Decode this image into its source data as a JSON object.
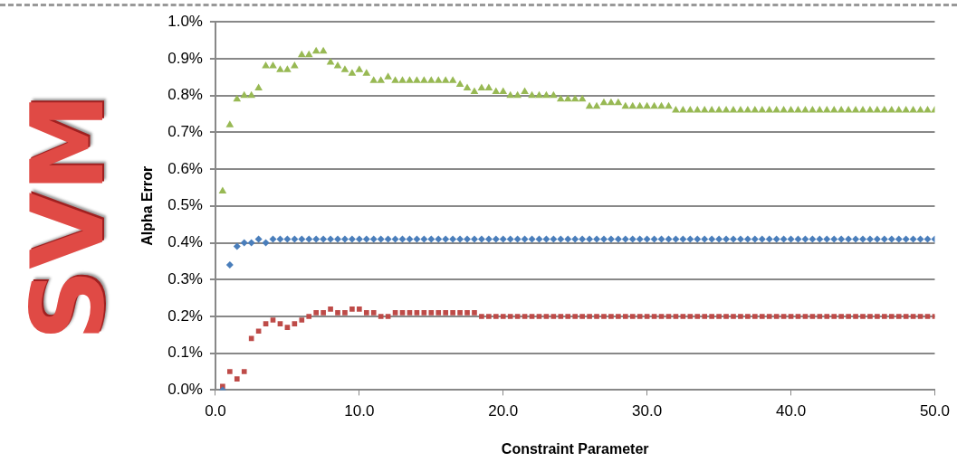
{
  "chart_data": {
    "type": "scatter",
    "xlabel": "Constraint Parameter",
    "ylabel": "Alpha Error",
    "annotations": [
      "SVM"
    ],
    "x": [
      0.5,
      1,
      1.5,
      2,
      2.5,
      3,
      3.5,
      4,
      4.5,
      5,
      5.5,
      6,
      6.5,
      7,
      7.5,
      8,
      8.5,
      9,
      9.5,
      10,
      10.5,
      11,
      11.5,
      12,
      12.5,
      13,
      13.5,
      14,
      14.5,
      15,
      15.5,
      16,
      16.5,
      17,
      17.5,
      18,
      18.5,
      19,
      19.5,
      20,
      20.5,
      21,
      21.5,
      22,
      22.5,
      23,
      23.5,
      24,
      24.5,
      25,
      25.5,
      26,
      26.5,
      27,
      27.5,
      28,
      28.5,
      29,
      29.5,
      30,
      30.5,
      31,
      31.5,
      32,
      32.5,
      33,
      33.5,
      34,
      34.5,
      35,
      35.5,
      36,
      36.5,
      37,
      37.5,
      38,
      38.5,
      39,
      39.5,
      40,
      40.5,
      41,
      41.5,
      42,
      42.5,
      43,
      43.5,
      44,
      44.5,
      45,
      45.5,
      46,
      46.5,
      47,
      47.5,
      48,
      48.5,
      49,
      49.5,
      50
    ],
    "series": [
      {
        "color": "#4a7ebb",
        "marker": "diamond",
        "values": [
          0,
          0.34,
          0.39,
          0.4,
          0.4,
          0.41,
          0.4,
          0.41,
          0.41,
          0.41,
          0.41,
          0.41,
          0.41,
          0.41,
          0.41,
          0.41,
          0.41,
          0.41,
          0.41,
          0.41,
          0.41,
          0.41,
          0.41,
          0.41,
          0.41,
          0.41,
          0.41,
          0.41,
          0.41,
          0.41,
          0.41,
          0.41,
          0.41,
          0.41,
          0.41,
          0.41,
          0.41,
          0.41,
          0.41,
          0.41,
          0.41,
          0.41,
          0.41,
          0.41,
          0.41,
          0.41,
          0.41,
          0.41,
          0.41,
          0.41,
          0.41,
          0.41,
          0.41,
          0.41,
          0.41,
          0.41,
          0.41,
          0.41,
          0.41,
          0.41,
          0.41,
          0.41,
          0.41,
          0.41,
          0.41,
          0.41,
          0.41,
          0.41,
          0.41,
          0.41,
          0.41,
          0.41,
          0.41,
          0.41,
          0.41,
          0.41,
          0.41,
          0.41,
          0.41,
          0.41,
          0.41,
          0.41,
          0.41,
          0.41,
          0.41,
          0.41,
          0.41,
          0.41,
          0.41,
          0.41,
          0.41,
          0.41,
          0.41,
          0.41,
          0.41,
          0.41,
          0.41,
          0.41,
          0.41,
          0.41
        ]
      },
      {
        "color": "#be4b48",
        "marker": "square",
        "values": [
          0.01,
          0.05,
          0.03,
          0.05,
          0.14,
          0.16,
          0.18,
          0.19,
          0.18,
          0.17,
          0.18,
          0.19,
          0.2,
          0.21,
          0.21,
          0.22,
          0.21,
          0.21,
          0.22,
          0.22,
          0.21,
          0.21,
          0.2,
          0.2,
          0.21,
          0.21,
          0.21,
          0.21,
          0.21,
          0.21,
          0.21,
          0.21,
          0.21,
          0.21,
          0.21,
          0.21,
          0.2,
          0.2,
          0.2,
          0.2,
          0.2,
          0.2,
          0.2,
          0.2,
          0.2,
          0.2,
          0.2,
          0.2,
          0.2,
          0.2,
          0.2,
          0.2,
          0.2,
          0.2,
          0.2,
          0.2,
          0.2,
          0.2,
          0.2,
          0.2,
          0.2,
          0.2,
          0.2,
          0.2,
          0.2,
          0.2,
          0.2,
          0.2,
          0.2,
          0.2,
          0.2,
          0.2,
          0.2,
          0.2,
          0.2,
          0.2,
          0.2,
          0.2,
          0.2,
          0.2,
          0.2,
          0.2,
          0.2,
          0.2,
          0.2,
          0.2,
          0.2,
          0.2,
          0.2,
          0.2,
          0.2,
          0.2,
          0.2,
          0.2,
          0.2,
          0.2,
          0.2,
          0.2,
          0.2,
          0.2
        ]
      },
      {
        "color": "#98b954",
        "marker": "triangle",
        "values": [
          0.54,
          0.72,
          0.79,
          0.8,
          0.8,
          0.82,
          0.88,
          0.88,
          0.87,
          0.87,
          0.88,
          0.91,
          0.91,
          0.92,
          0.92,
          0.89,
          0.88,
          0.87,
          0.86,
          0.87,
          0.86,
          0.84,
          0.84,
          0.85,
          0.84,
          0.84,
          0.84,
          0.84,
          0.84,
          0.84,
          0.84,
          0.84,
          0.84,
          0.83,
          0.82,
          0.81,
          0.82,
          0.82,
          0.81,
          0.81,
          0.8,
          0.8,
          0.81,
          0.8,
          0.8,
          0.8,
          0.8,
          0.79,
          0.79,
          0.79,
          0.79,
          0.77,
          0.77,
          0.78,
          0.78,
          0.78,
          0.77,
          0.77,
          0.77,
          0.77,
          0.77,
          0.77,
          0.77,
          0.76,
          0.76,
          0.76,
          0.76,
          0.76,
          0.76,
          0.76,
          0.76,
          0.76,
          0.76,
          0.76,
          0.76,
          0.76,
          0.76,
          0.76,
          0.76,
          0.76,
          0.76,
          0.76,
          0.76,
          0.76,
          0.76,
          0.76,
          0.76,
          0.76,
          0.76,
          0.76,
          0.76,
          0.76,
          0.76,
          0.76,
          0.76,
          0.76,
          0.76,
          0.76,
          0.76,
          0.76
        ]
      }
    ],
    "xlim": [
      0,
      50
    ],
    "xticks": [
      {
        "value": 0,
        "label": "0.0"
      },
      {
        "value": 10,
        "label": "10.0"
      },
      {
        "value": 20,
        "label": "20.0"
      },
      {
        "value": 30,
        "label": "30.0"
      },
      {
        "value": 40,
        "label": "40.0"
      },
      {
        "value": 50,
        "label": "50.0"
      }
    ],
    "ylim": [
      0,
      1
    ],
    "yticks": [
      {
        "value": 0,
        "label": "0.0%"
      },
      {
        "value": 0.1,
        "label": "0.1%"
      },
      {
        "value": 0.2,
        "label": "0.2%"
      },
      {
        "value": 0.3,
        "label": "0.3%"
      },
      {
        "value": 0.4,
        "label": "0.4%"
      },
      {
        "value": 0.5,
        "label": "0.5%"
      },
      {
        "value": 0.6,
        "label": "0.6%"
      },
      {
        "value": 0.7,
        "label": "0.7%"
      },
      {
        "value": 0.8,
        "label": "0.8%"
      },
      {
        "value": 0.9,
        "label": "0.9%"
      },
      {
        "value": 1,
        "label": "1.0%"
      }
    ],
    "grid": "y",
    "legend": false
  }
}
